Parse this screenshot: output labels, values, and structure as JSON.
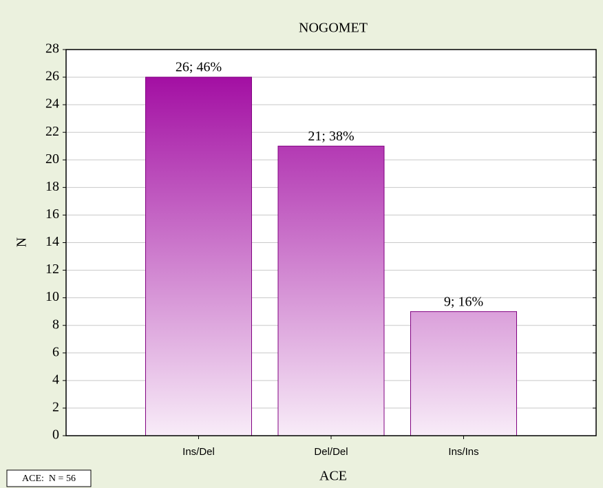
{
  "chart_data": {
    "type": "bar",
    "title": "NOGOMET",
    "x_label": "ACE",
    "y_label": "N",
    "note": "ACE:  N = 56",
    "categories": [
      "Ins/Del",
      "Del/Del",
      "Ins/Ins"
    ],
    "values": [
      26,
      21,
      9
    ],
    "value_labels": [
      "26; 46%",
      "21; 38%",
      "9; 16%"
    ],
    "color": "#a30fa3",
    "ylim": [
      0,
      28
    ],
    "yticks": [
      0,
      2,
      4,
      6,
      8,
      10,
      12,
      14,
      16,
      18,
      20,
      22,
      24,
      26,
      28
    ],
    "grid": true
  }
}
